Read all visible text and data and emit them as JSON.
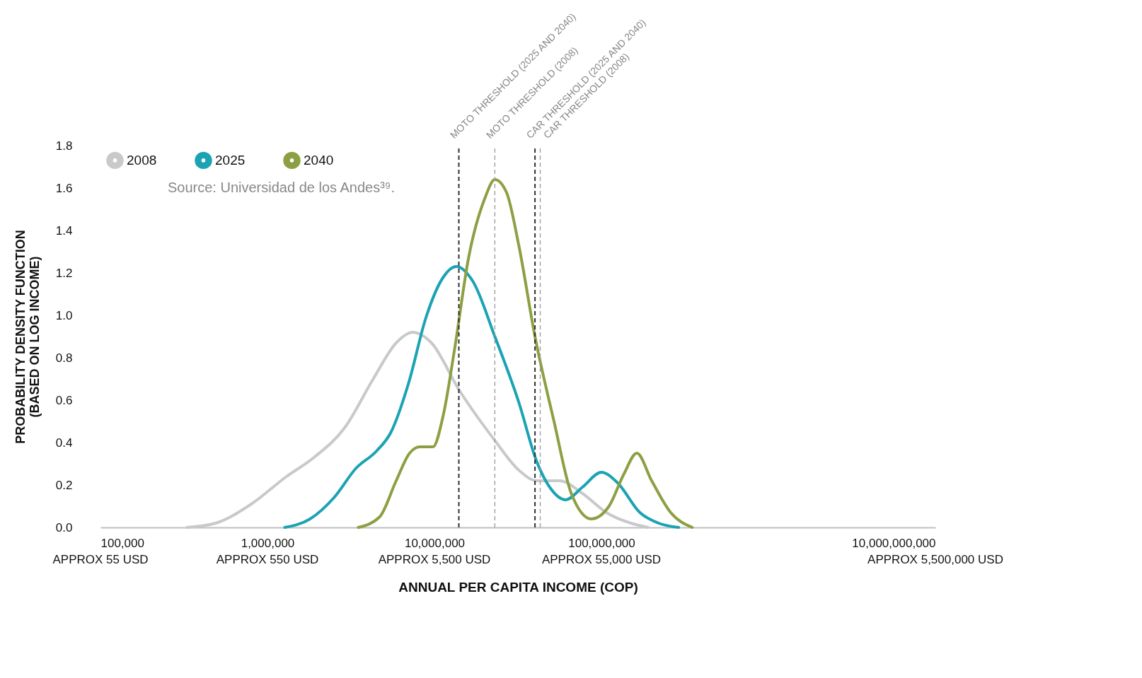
{
  "chart_data": {
    "type": "line",
    "xlabel": "ANNUAL PER CAPITA INCOME (COP)",
    "ylabel": "PROBABILITY DENSITY FUNCTION\n(BASED ON LOG INCOME)",
    "log": "x",
    "xlim": [
      100000,
      10000000000
    ],
    "xticks": [
      {
        "value": 100000,
        "label": "100,000"
      },
      {
        "value": 1000000,
        "label": "1,000,000"
      },
      {
        "value": 10000000,
        "label": "10,000,000"
      },
      {
        "value": 100000000,
        "label": "100,000,000"
      },
      {
        "value": 10000000000,
        "label": "10,000,000,000"
      }
    ],
    "ylim": [
      0,
      1.8
    ],
    "yticks": [
      {
        "value": 0,
        "label": "0.0"
      },
      0.2,
      0.4,
      0.6,
      0.8,
      {
        "value": 1,
        "label": "1.0"
      },
      1.2,
      1.4,
      1.6,
      1.8
    ],
    "grid": false,
    "legend": "top left",
    "marker": "none",
    "line_style": "solid",
    "annotations": [
      "Source: Universidad de los Andes³⁹.",
      "APPROX 55 USD",
      "APPROX 550 USD",
      "APPROX 5,500 USD",
      "APPROX 55,000 USD",
      "APPROX 5,500,000 USD"
    ],
    "ref_lines": [
      {
        "axis": "x",
        "value": 14000000,
        "label": "MOTO THRESHOLD (2025 AND 2040)",
        "color": "#333333",
        "line_style": "dashed"
      },
      {
        "axis": "x",
        "value": 23000000,
        "label": "MOTO THRESHOLD (2008)",
        "color": "#999999",
        "line_style": "dashed"
      },
      {
        "axis": "x",
        "value": 40000000,
        "label": "CAR THRESHOLD (2025 AND 2040)",
        "color": "#333333",
        "line_style": "dashed"
      },
      {
        "axis": "x",
        "value": 43000000,
        "label": "CAR THRESHOLD (2008)",
        "color": "#999999",
        "line_style": "dashed"
      }
    ],
    "series": [
      {
        "name": "2008",
        "color": "#c8c9cb",
        "x": [
          330000,
          490000,
          800000,
          1300000,
          1900000,
          2900000,
          4300000,
          5900000,
          7400000,
          9600000,
          14000000,
          23000000,
          32000000,
          41000000,
          56000000,
          77000000,
          107000000,
          150000000,
          190000000
        ],
        "values": [
          0,
          0.02,
          0.11,
          0.24,
          0.33,
          0.47,
          0.7,
          0.87,
          0.92,
          0.87,
          0.65,
          0.41,
          0.27,
          0.22,
          0.22,
          0.16,
          0.07,
          0.02,
          0
        ]
      },
      {
        "name": "2025",
        "color": "#1ba3b4",
        "x": [
          1270000,
          1800000,
          2500000,
          3400000,
          4500000,
          5500000,
          7000000,
          8900000,
          11300000,
          13500000,
          17000000,
          23000000,
          32000000,
          41000000,
          50000000,
          61000000,
          77000000,
          100000000,
          125000000,
          170000000,
          220000000,
          290000000
        ],
        "values": [
          0,
          0.04,
          0.14,
          0.28,
          0.36,
          0.45,
          0.68,
          0.99,
          1.18,
          1.23,
          1.16,
          0.9,
          0.59,
          0.31,
          0.18,
          0.13,
          0.19,
          0.26,
          0.21,
          0.07,
          0.02,
          0
        ]
      },
      {
        "name": "2040",
        "color": "#8ca043",
        "x": [
          3500000,
          4700000,
          5900000,
          7100000,
          8200000,
          9800000,
          11300000,
          13200000,
          16000000,
          20000000,
          23000000,
          27000000,
          32000000,
          40000000,
          52000000,
          66000000,
          87000000,
          111000000,
          136000000,
          163000000,
          200000000,
          260000000,
          350000000
        ],
        "values": [
          0,
          0.05,
          0.22,
          0.35,
          0.38,
          0.38,
          0.53,
          0.84,
          1.27,
          1.55,
          1.64,
          1.58,
          1.33,
          0.9,
          0.5,
          0.16,
          0.04,
          0.1,
          0.25,
          0.35,
          0.22,
          0.07,
          0
        ]
      }
    ]
  }
}
